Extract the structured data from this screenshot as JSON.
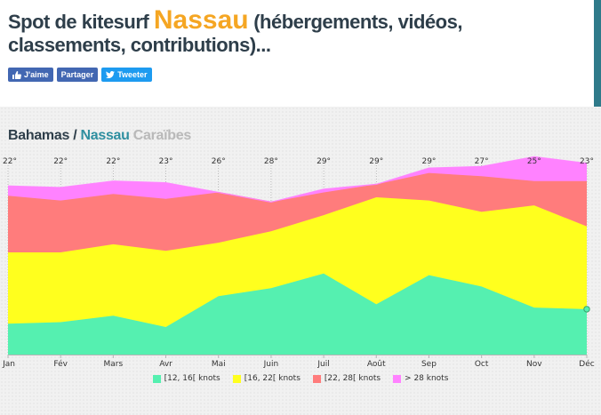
{
  "header": {
    "title_prefix": "Spot de kitesurf ",
    "spot_name": "Nassau",
    "title_suffix": " (hébergements, vidéos, classements, contributions)...",
    "title_color": "#2e3e4a",
    "spot_color": "#f5a623",
    "accent_color": "#2f7a8a",
    "social": {
      "like_label": "J'aime",
      "share_label": "Partager",
      "tweet_label": "Tweeter"
    },
    "social_colors": {
      "facebook": "#4267b2",
      "twitter": "#1d9bf0"
    }
  },
  "breadcrumb": {
    "country": "Bahamas",
    "separator": " / ",
    "spot": "Nassau",
    "region": "Caraïbes",
    "country_color": "#2e3e4a",
    "spot_color": "#2f8fa0",
    "region_color": "#b9b9b9"
  },
  "chart_data": {
    "type": "area",
    "stacked": true,
    "categories": [
      "Jan",
      "Fév",
      "Mars",
      "Avr",
      "Mai",
      "Juin",
      "Juil",
      "Août",
      "Sep",
      "Oct",
      "Nov",
      "Déc"
    ],
    "temperatures": [
      "22°",
      "22°",
      "22°",
      "23°",
      "26°",
      "28°",
      "29°",
      "29°",
      "29°",
      "27°",
      "25°",
      "23°"
    ],
    "series": [
      {
        "name": "[12, 16[ knots",
        "color": "#55f0b0",
        "values": [
          19,
          20,
          24,
          17,
          36,
          41,
          50,
          31,
          49,
          42,
          29,
          28
        ]
      },
      {
        "name": "[16, 22[ knots",
        "color": "#ffff1e",
        "values": [
          44,
          43,
          44,
          47,
          33,
          35,
          36,
          66,
          46,
          46,
          63,
          51
        ]
      },
      {
        "name": "[22, 28[ knots",
        "color": "#ff7c7c",
        "values": [
          35,
          32,
          31,
          32,
          31,
          18,
          14,
          8,
          17,
          22,
          15,
          28
        ]
      },
      {
        "name": "> 28 knots",
        "color": "#ff82ff",
        "values": [
          6,
          8,
          8,
          10,
          0,
          0,
          2,
          0,
          3,
          6,
          15,
          11
        ]
      }
    ],
    "ylim": [
      0,
      120
    ],
    "grid": false,
    "legend_position": "bottom"
  }
}
